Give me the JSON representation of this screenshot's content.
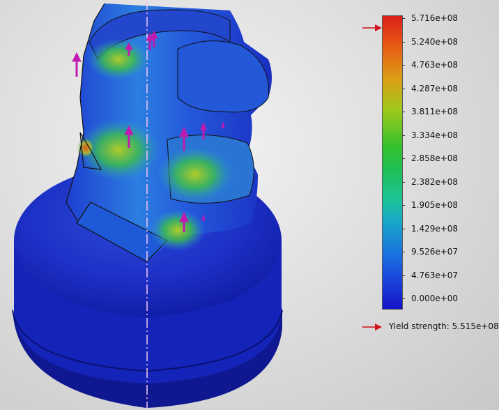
{
  "legend": {
    "ticks": [
      "5.716e+08",
      "5.240e+08",
      "4.763e+08",
      "4.287e+08",
      "3.811e+08",
      "3.334e+08",
      "2.858e+08",
      "2.382e+08",
      "1.905e+08",
      "1.429e+08",
      "9.526e+07",
      "4.763e+07",
      "0.000e+00"
    ],
    "yield_label": "Yield strength:",
    "yield_value": "5.515e+08",
    "max_value": "5.716e+08",
    "colors": {
      "high": "#d9201a",
      "low": "#1414c8",
      "arrow": "#d0101a"
    }
  },
  "viewport": {
    "model": "stress-plot-model",
    "load_arrow_color": "#c01bb0",
    "centerline_color": "#f5c8f0"
  }
}
